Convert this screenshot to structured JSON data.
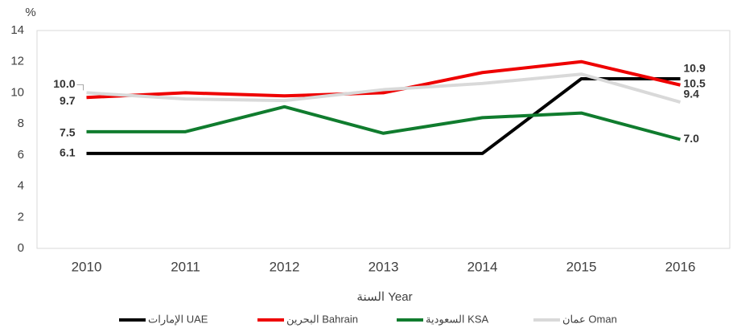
{
  "chart_data": {
    "type": "line",
    "y_label": "%",
    "x_label": "السنة Year",
    "categories": [
      "2010",
      "2011",
      "2012",
      "2013",
      "2014",
      "2015",
      "2016"
    ],
    "series": [
      {
        "name": "الإمارات UAE",
        "color": "#000000",
        "values": [
          6.1,
          6.1,
          6.1,
          6.1,
          6.1,
          10.9,
          10.9
        ],
        "value_labels": [
          "6.1",
          null,
          null,
          null,
          null,
          null,
          "10.9"
        ]
      },
      {
        "name": "البحرين Bahrain",
        "color": "#ee0000",
        "values": [
          9.7,
          10.0,
          9.8,
          10.0,
          11.3,
          12.0,
          10.5
        ],
        "value_labels": [
          "9.7",
          null,
          null,
          null,
          null,
          null,
          "10.5"
        ]
      },
      {
        "name": "السعودية KSA",
        "color": "#107c2e",
        "values": [
          7.5,
          7.5,
          9.1,
          7.4,
          8.4,
          8.7,
          7.0
        ],
        "value_labels": [
          "7.5",
          null,
          null,
          null,
          null,
          null,
          "7.0"
        ]
      },
      {
        "name": "عمان Oman",
        "color": "#d9d9d9",
        "values": [
          10.0,
          9.6,
          9.5,
          10.2,
          10.6,
          11.2,
          9.4
        ],
        "value_labels": [
          "10.0",
          null,
          null,
          null,
          null,
          null,
          "9.4"
        ]
      }
    ],
    "ylim": [
      0,
      14
    ],
    "yticks": [
      0,
      2,
      4,
      6,
      8,
      10,
      12,
      14
    ],
    "grid": false
  }
}
